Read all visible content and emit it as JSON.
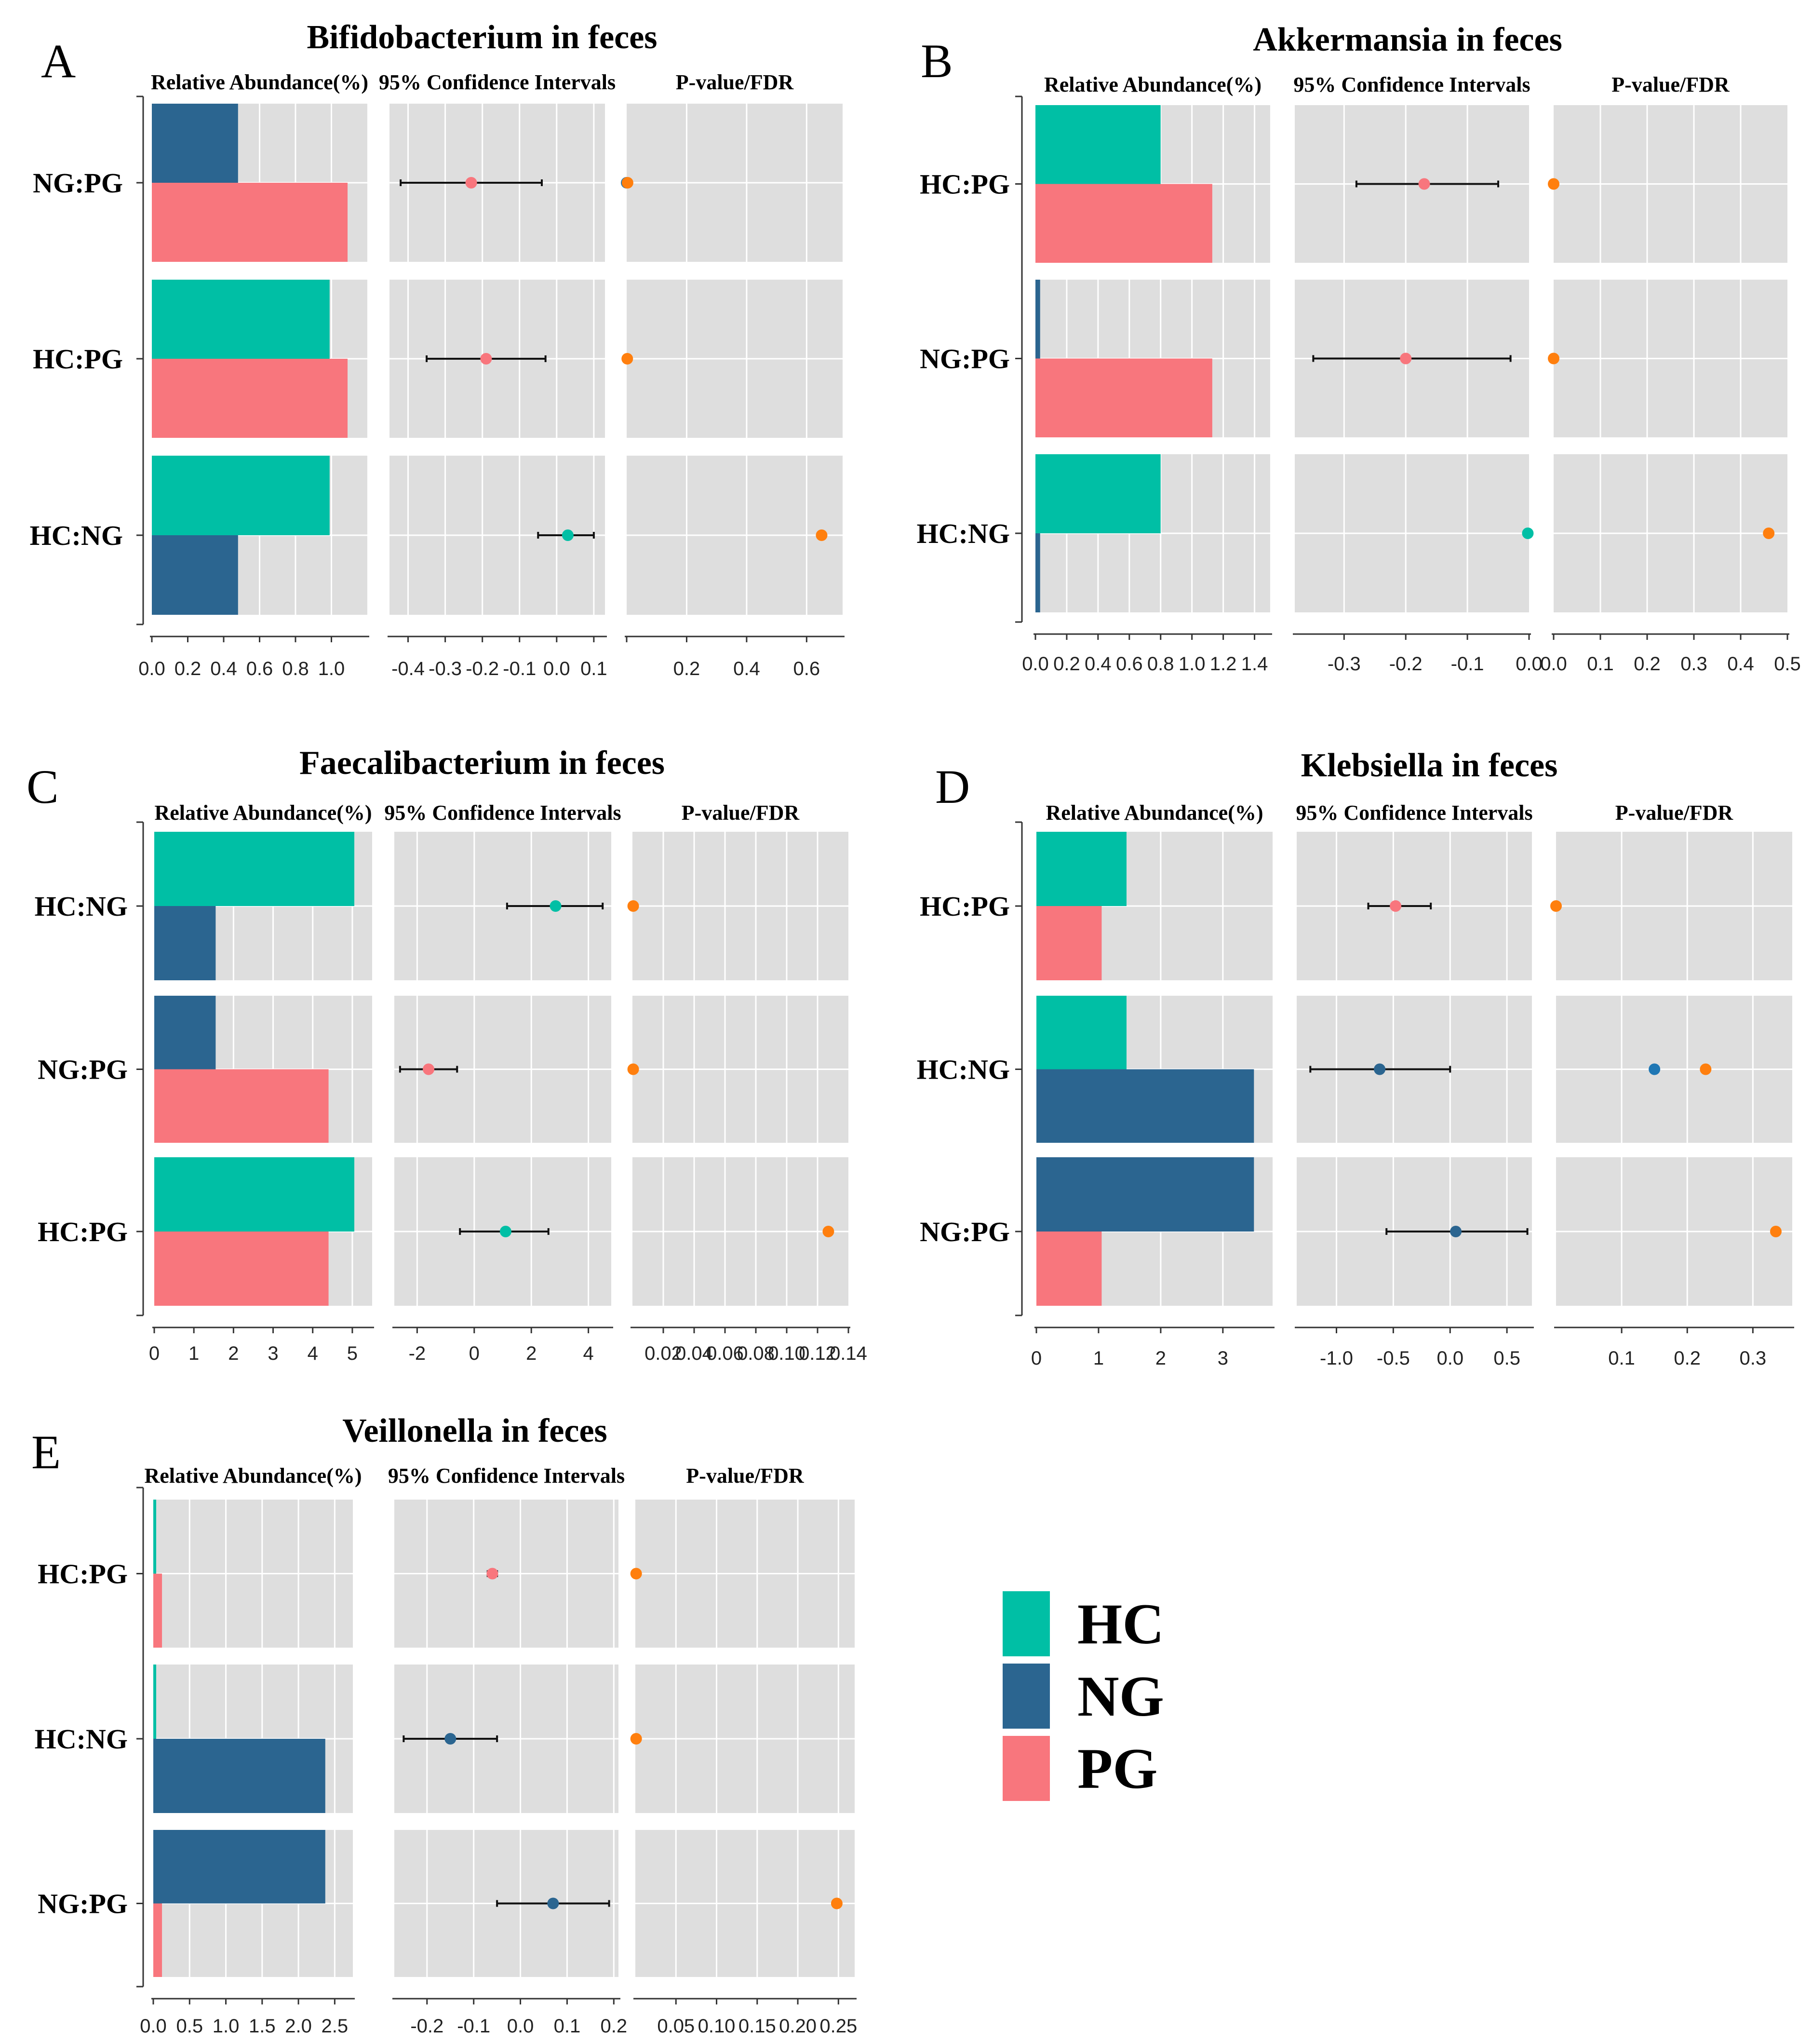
{
  "column_headers": {
    "abundance": "Relative Abundance(%)",
    "ci": "95% Confidence Intervals",
    "p": "P-value/FDR"
  },
  "legend": [
    {
      "name": "HC",
      "color": "#00BFA5"
    },
    {
      "name": "NG",
      "color": "#2B6590"
    },
    {
      "name": "PG",
      "color": "#F8767D"
    }
  ],
  "colors": {
    "HC": "#00BFA5",
    "NG": "#2B6590",
    "PG": "#F8767D",
    "pvalue": "#FF7F0E",
    "fdr": "#1F77B4",
    "panel_bg": "#DEDEDE"
  },
  "chart_data": [
    {
      "type": "bar",
      "letter": "A",
      "title": "Bifidobacterium in feces",
      "abundance_axis": {
        "min": 0,
        "max": 1.2,
        "ticks": [
          0.0,
          0.2,
          0.4,
          0.6,
          0.8,
          1.0
        ],
        "tick_labels": [
          "0.0",
          "0.2",
          "0.4",
          "0.6",
          "0.8",
          "1.0"
        ]
      },
      "ci_axis": {
        "min": -0.45,
        "max": 0.13,
        "ticks": [
          -0.4,
          -0.3,
          -0.2,
          -0.1,
          0.0,
          0.1
        ],
        "tick_labels": [
          "-0.4",
          "-0.3",
          "-0.2",
          "-0.1",
          "0.0",
          "0.1"
        ]
      },
      "p_axis": {
        "min": 0,
        "max": 0.72,
        "ticks": [
          0.0,
          0.2,
          0.4,
          0.6
        ],
        "tick_labels": [
          "",
          "0.2",
          "0.4",
          "0.6"
        ]
      },
      "rows": [
        {
          "label": "NG:PG",
          "g1": "NG",
          "v1": 0.48,
          "g2": "PG",
          "v2": 1.09,
          "ci_low": -0.42,
          "ci_high": -0.04,
          "diff": -0.23,
          "diff_group": "PG",
          "p": 0.003,
          "fdr": 0.0
        },
        {
          "label": "HC:PG",
          "g1": "HC",
          "v1": 0.99,
          "g2": "PG",
          "v2": 1.09,
          "ci_low": -0.35,
          "ci_high": -0.03,
          "diff": -0.19,
          "diff_group": "PG",
          "p": 0.002,
          "fdr": null
        },
        {
          "label": "HC:NG",
          "g1": "HC",
          "v1": 0.99,
          "g2": "NG",
          "v2": 0.48,
          "ci_low": -0.05,
          "ci_high": 0.1,
          "diff": 0.03,
          "diff_group": "HC",
          "p": 0.65,
          "fdr": null
        }
      ]
    },
    {
      "type": "bar",
      "letter": "B",
      "title": "Akkermansia in feces",
      "abundance_axis": {
        "min": 0,
        "max": 1.5,
        "ticks": [
          0.0,
          0.2,
          0.4,
          0.6,
          0.8,
          1.0,
          1.2,
          1.4
        ],
        "tick_labels": [
          "0.0",
          "0.2",
          "0.4",
          "0.6",
          "0.8",
          "1.0",
          "1.2",
          "1.4"
        ]
      },
      "ci_axis": {
        "min": -0.38,
        "max": 0.0,
        "ticks": [
          -0.3,
          -0.2,
          -0.1,
          0.0
        ],
        "tick_labels": [
          "-0.3",
          "-0.2",
          "-0.1",
          "0.0"
        ]
      },
      "p_axis": {
        "min": 0,
        "max": 0.5,
        "ticks": [
          0.0,
          0.1,
          0.2,
          0.3,
          0.4,
          0.5
        ],
        "tick_labels": [
          "0.0",
          "0.1",
          "0.2",
          "0.3",
          "0.4",
          "0.5"
        ]
      },
      "rows": [
        {
          "label": "HC:PG",
          "g1": "HC",
          "v1": 0.8,
          "g2": "PG",
          "v2": 1.13,
          "ci_low": -0.28,
          "ci_high": -0.05,
          "diff": -0.17,
          "diff_group": "PG",
          "p": 0.0,
          "fdr": null
        },
        {
          "label": "NG:PG",
          "g1": "NG",
          "v1": 0.03,
          "g2": "PG",
          "v2": 1.13,
          "ci_low": -0.35,
          "ci_high": -0.03,
          "diff": -0.2,
          "diff_group": "PG",
          "p": 0.0,
          "fdr": null
        },
        {
          "label": "HC:NG",
          "g1": "HC",
          "v1": 0.8,
          "g2": "NG",
          "v2": 0.03,
          "ci_low": -0.002,
          "ci_high": -0.002,
          "diff": -0.002,
          "diff_group": "HC",
          "p": 0.46,
          "fdr": null
        }
      ]
    },
    {
      "type": "bar",
      "letter": "C",
      "title": "Faecalibacterium in feces",
      "abundance_axis": {
        "min": 0,
        "max": 5.5,
        "ticks": [
          0,
          1,
          2,
          3,
          4,
          5
        ],
        "tick_labels": [
          "0",
          "1",
          "2",
          "3",
          "4",
          "5"
        ]
      },
      "ci_axis": {
        "min": -2.8,
        "max": 4.8,
        "ticks": [
          -2,
          0,
          2,
          4
        ],
        "tick_labels": [
          "-2",
          "0",
          "2",
          "4"
        ]
      },
      "p_axis": {
        "min": 0,
        "max": 0.14,
        "ticks": [
          0.02,
          0.04,
          0.06,
          0.08,
          0.1,
          0.12,
          0.14
        ],
        "tick_labels": [
          "0.02",
          "0.04",
          "0.06",
          "0.08",
          "0.10",
          "0.12",
          "0.14"
        ]
      },
      "rows": [
        {
          "label": "HC:NG",
          "g1": "HC",
          "v1": 5.05,
          "g2": "NG",
          "v2": 1.55,
          "ci_low": 1.15,
          "ci_high": 4.5,
          "diff": 2.85,
          "diff_group": "HC",
          "p": 0.0005,
          "fdr": null
        },
        {
          "label": "NG:PG",
          "g1": "NG",
          "v1": 1.55,
          "g2": "PG",
          "v2": 4.4,
          "ci_low": -2.6,
          "ci_high": -0.6,
          "diff": -1.6,
          "diff_group": "PG",
          "p": 0.0005,
          "fdr": null
        },
        {
          "label": "HC:PG",
          "g1": "HC",
          "v1": 5.05,
          "g2": "PG",
          "v2": 4.4,
          "ci_low": -0.5,
          "ci_high": 2.6,
          "diff": 1.1,
          "diff_group": "HC",
          "p": 0.127,
          "fdr": null
        }
      ]
    },
    {
      "type": "bar",
      "letter": "D",
      "title": "Klebsiella in feces",
      "abundance_axis": {
        "min": 0,
        "max": 3.8,
        "ticks": [
          0,
          1,
          2,
          3
        ],
        "tick_labels": [
          "0",
          "1",
          "2",
          "3"
        ]
      },
      "ci_axis": {
        "min": -1.35,
        "max": 0.72,
        "ticks": [
          -1.0,
          -0.5,
          0.0,
          0.5
        ],
        "tick_labels": [
          "-1.0",
          "-0.5",
          "0.0",
          "0.5"
        ]
      },
      "p_axis": {
        "min": 0,
        "max": 0.36,
        "ticks": [
          0.1,
          0.2,
          0.3
        ],
        "tick_labels": [
          "0.1",
          "0.2",
          "0.3"
        ]
      },
      "rows": [
        {
          "label": "HC:PG",
          "g1": "HC",
          "v1": 1.45,
          "g2": "PG",
          "v2": 1.05,
          "ci_low": -0.72,
          "ci_high": -0.17,
          "diff": -0.48,
          "diff_group": "PG",
          "p": 0.0,
          "fdr": null
        },
        {
          "label": "HC:NG",
          "g1": "HC",
          "v1": 1.45,
          "g2": "NG",
          "v2": 3.5,
          "ci_low": -1.23,
          "ci_high": 0.0,
          "diff": -0.62,
          "diff_group": "NG",
          "p": 0.228,
          "fdr": 0.15
        },
        {
          "label": "NG:PG",
          "g1": "NG",
          "v1": 3.5,
          "g2": "PG",
          "v2": 1.05,
          "ci_low": -0.56,
          "ci_high": 0.68,
          "diff": 0.05,
          "diff_group": "NG",
          "p": 0.335,
          "fdr": null
        }
      ]
    },
    {
      "type": "bar",
      "letter": "E",
      "title": "Veillonella in feces",
      "abundance_axis": {
        "min": 0,
        "max": 2.75,
        "ticks": [
          0.0,
          0.5,
          1.0,
          1.5,
          2.0,
          2.5
        ],
        "tick_labels": [
          "0.0",
          "0.5",
          "1.0",
          "1.5",
          "2.0",
          "2.5"
        ]
      },
      "ci_axis": {
        "min": -0.27,
        "max": 0.21,
        "ticks": [
          -0.2,
          -0.1,
          0.0,
          0.1,
          0.2
        ],
        "tick_labels": [
          "-0.2",
          "-0.1",
          "0.0",
          "0.1",
          "0.2"
        ]
      },
      "p_axis": {
        "min": 0,
        "max": 0.27,
        "ticks": [
          0.05,
          0.1,
          0.15,
          0.2,
          0.25
        ],
        "tick_labels": [
          "0.05",
          "0.10",
          "0.15",
          "0.20",
          "0.25"
        ]
      },
      "rows": [
        {
          "label": "HC:PG",
          "g1": "HC",
          "v1": 0.04,
          "g2": "PG",
          "v2": 0.12,
          "ci_low": -0.07,
          "ci_high": -0.05,
          "diff": -0.06,
          "diff_group": "PG",
          "p": 0.001,
          "fdr": null
        },
        {
          "label": "HC:NG",
          "g1": "HC",
          "v1": 0.04,
          "g2": "NG",
          "v2": 2.37,
          "ci_low": -0.25,
          "ci_high": -0.05,
          "diff": -0.15,
          "diff_group": "NG",
          "p": 0.001,
          "fdr": null
        },
        {
          "label": "NG:PG",
          "g1": "NG",
          "v1": 2.37,
          "g2": "PG",
          "v2": 0.12,
          "ci_low": -0.05,
          "ci_high": 0.19,
          "diff": 0.07,
          "diff_group": "NG",
          "p": 0.248,
          "fdr": null
        }
      ]
    }
  ]
}
